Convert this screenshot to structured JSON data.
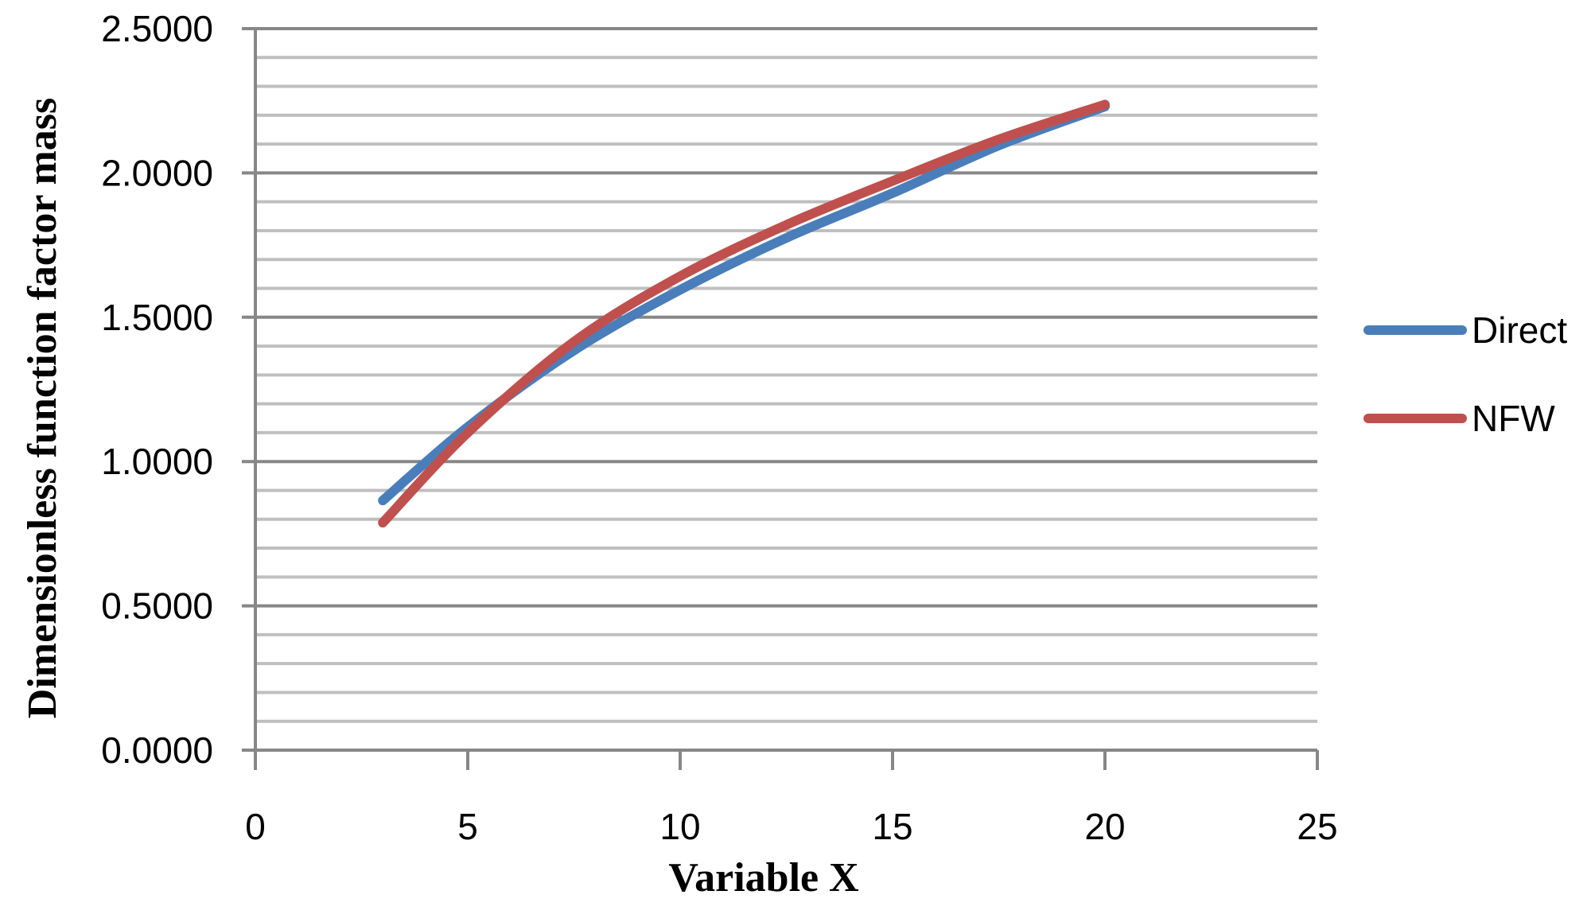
{
  "chart_data": {
    "type": "line",
    "title": "",
    "xlabel": "Variable X",
    "ylabel": "Dimensionless function factor mass",
    "xlim": [
      0,
      25
    ],
    "ylim": [
      0,
      2.5
    ],
    "x_ticks": [
      "0",
      "5",
      "10",
      "15",
      "20",
      "25"
    ],
    "y_ticks": [
      "0.0000",
      "0.5000",
      "1.0000",
      "1.5000",
      "2.0000",
      "2.5000"
    ],
    "grid": {
      "major_y": true,
      "minor_y": true,
      "minor_step": 0.1
    },
    "legend_position": "right",
    "x": [
      3,
      5,
      7.5,
      10,
      12.5,
      15,
      17.5,
      20
    ],
    "series": [
      {
        "name": "Direct",
        "color": "#4a7ebb",
        "values": [
          0.865,
          1.12,
          1.385,
          1.595,
          1.775,
          1.93,
          2.095,
          2.23
        ]
      },
      {
        "name": "NFW",
        "color": "#c0504d",
        "values": [
          0.788,
          1.1,
          1.415,
          1.642,
          1.82,
          1.972,
          2.116,
          2.237
        ]
      }
    ]
  },
  "legend": {
    "items": [
      {
        "label": "Direct",
        "color": "#4a7ebb"
      },
      {
        "label": "NFW",
        "color": "#c0504d"
      }
    ]
  }
}
